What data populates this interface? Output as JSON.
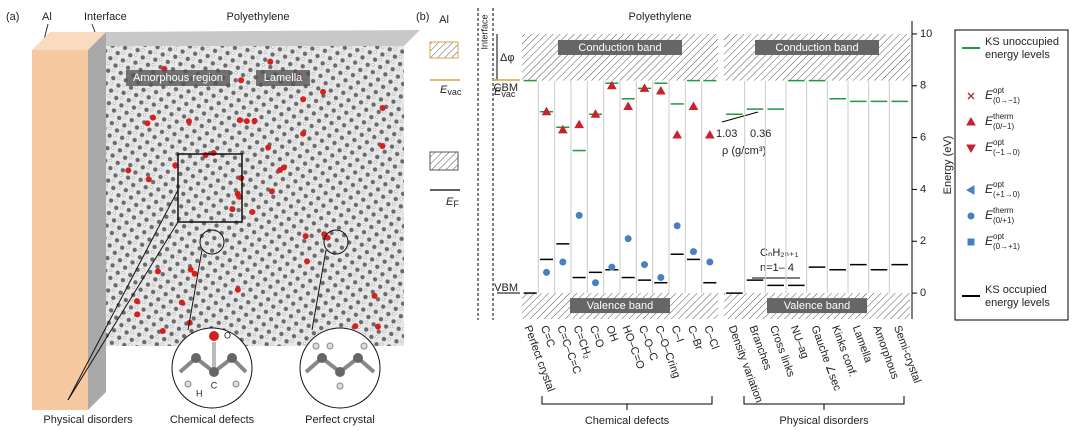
{
  "panel_a": {
    "label": "(a)",
    "al": "Al",
    "interface": "Interface",
    "polyethylene": "Polyethylene",
    "amorphous_region": "Amorphous region",
    "lamella": "Lamella",
    "atom_o": "O",
    "atom_c": "C",
    "atom_h": "H",
    "captions": [
      "Physical disorders",
      "Chemical defects",
      "Perfect crystal"
    ]
  },
  "panel_b": {
    "label": "(b)",
    "al": "Al",
    "interface": "Interface",
    "polyethylene": "Polyethylene",
    "delta_phi": "Δφ",
    "e_vac": {
      "symbol": "E",
      "sub": "vac"
    },
    "e_f": {
      "symbol": "E",
      "sub": "F"
    },
    "cbm": "CBM",
    "vbm": "VBM",
    "conduction_band": "Conduction band",
    "valence_band": "Valence band",
    "y_label": "Energy (eV)",
    "ylim": [
      -1,
      10.5
    ],
    "yticks": [
      0,
      2,
      4,
      6,
      8,
      10
    ],
    "density_labels": {
      "high": "1.03",
      "low": "0.36",
      "axis": "ρ (g/cm³)"
    },
    "alkyl": {
      "formula": "CₙH₂ₙ₊₁",
      "range": "n=1– 4"
    },
    "colors": {
      "unoccupied": "#1f9a3e",
      "occupied": "#000000",
      "acceptor": "#c8232c",
      "donor": "#4a7fc0"
    },
    "groups": [
      {
        "name": "Chemical defects",
        "categories": [
          "Perfect crystal",
          "C=C",
          "C=C–C=C",
          "C=CH₂",
          "C=O",
          "OH",
          "HO–C=O",
          "C–O–C",
          "C–O–Cring",
          "C–I",
          "C–Br",
          "C–Cl"
        ],
        "occupied": [
          0,
          1.3,
          1.9,
          0.6,
          0.8,
          0.9,
          0.6,
          0.5,
          0.4,
          1.5,
          1.3,
          0.4
        ],
        "unoccupied": [
          8.2,
          7.0,
          6.4,
          5.5,
          6.9,
          8.1,
          7.5,
          7.9,
          8.1,
          7.3,
          8.2,
          8.2
        ],
        "therm_minus": [
          null,
          7.0,
          6.3,
          6.5,
          6.9,
          8.0,
          7.2,
          7.9,
          7.8,
          6.1,
          7.2,
          6.1
        ],
        "therm_plus": [
          null,
          0.8,
          1.2,
          3.0,
          0.4,
          1.0,
          2.1,
          1.1,
          0.6,
          2.6,
          1.6,
          1.2
        ]
      },
      {
        "name": "Physical disorders",
        "categories": [
          "Density variation",
          "Branches",
          "Cross links",
          "NU–ag",
          "Gauche ∠sec",
          "Kinks conf.",
          "Lamella",
          "Amorphous",
          "Semi-crystal"
        ],
        "occupied": [
          0,
          0.5,
          0.3,
          0.3,
          1.0,
          0.9,
          1.1,
          0.9,
          1.1
        ],
        "unoccupied": [
          6.9,
          7.1,
          7.1,
          8.2,
          8.2,
          7.5,
          7.4,
          7.4,
          7.4
        ]
      }
    ],
    "legend": [
      {
        "kind": "unoccupied",
        "marker": "line",
        "lines": [
          "KS unoccupied",
          "energy levels"
        ]
      },
      {
        "kind": "acceptor",
        "marker": "x",
        "symbol": "E",
        "sup": "opt",
        "sub": "(0→−1)"
      },
      {
        "kind": "acceptor",
        "marker": "tri-up",
        "symbol": "E",
        "sup": "therm",
        "sub": "(0/−1)"
      },
      {
        "kind": "acceptor",
        "marker": "tri-down",
        "symbol": "E",
        "sup": "opt",
        "sub": "(−1→0)"
      },
      {
        "kind": "donor",
        "marker": "tri-left",
        "symbol": "E",
        "sup": "opt",
        "sub": "(+1→0)"
      },
      {
        "kind": "donor",
        "marker": "circle",
        "symbol": "E",
        "sup": "therm",
        "sub": "(0/+1)"
      },
      {
        "kind": "donor",
        "marker": "square",
        "symbol": "E",
        "sup": "opt",
        "sub": "(0→+1)"
      },
      {
        "kind": "occupied",
        "marker": "line",
        "lines": [
          "KS occupied",
          "energy levels"
        ]
      }
    ]
  }
}
